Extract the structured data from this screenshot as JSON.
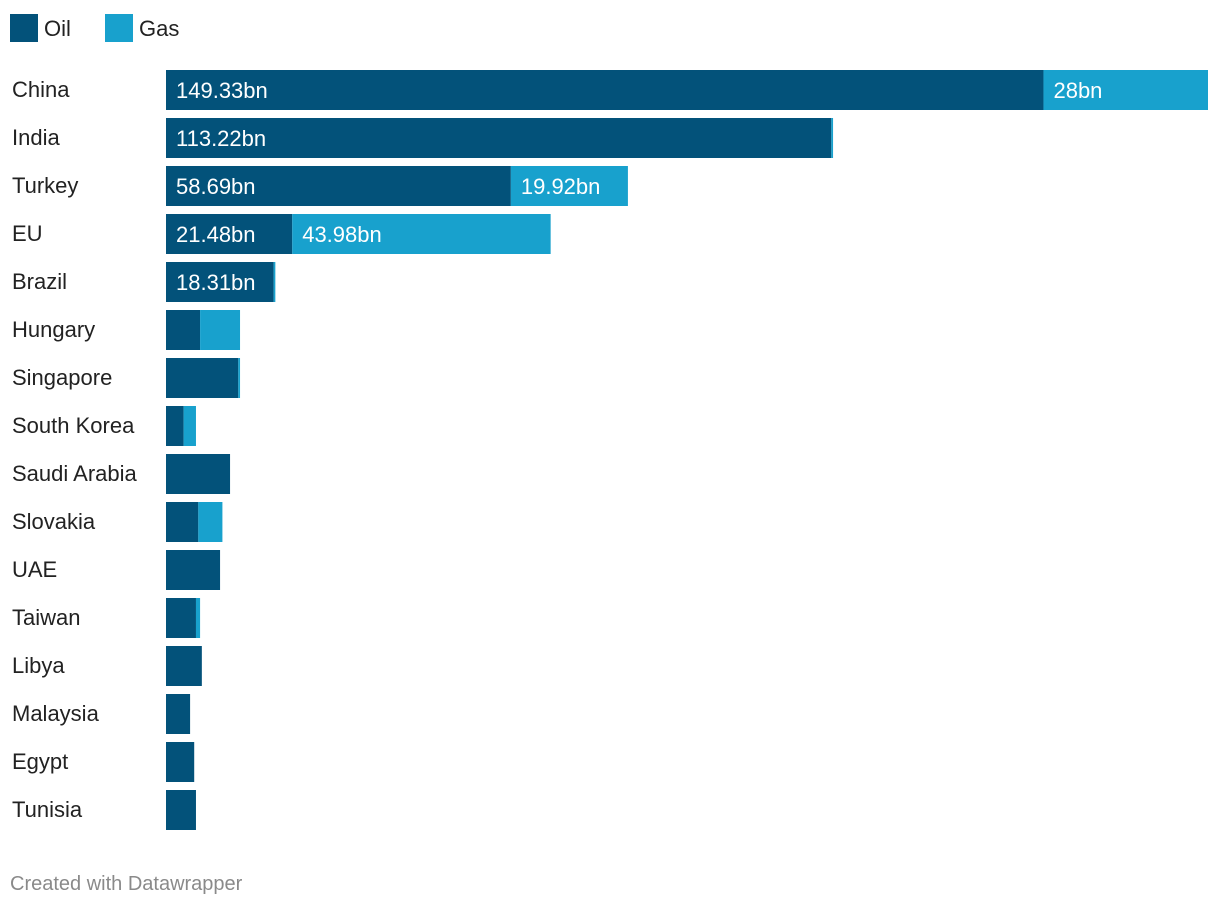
{
  "chart_data": {
    "type": "bar",
    "orientation": "horizontal",
    "stacked": true,
    "title": "",
    "xlabel": "",
    "ylabel": "",
    "grid": false,
    "legend_position": "top-left",
    "categories": [
      "China",
      "India",
      "Turkey",
      "EU",
      "Brazil",
      "Hungary",
      "Singapore",
      "South Korea",
      "Saudi Arabia",
      "Slovakia",
      "UAE",
      "Taiwan",
      "Libya",
      "Malaysia",
      "Egypt",
      "Tunisia"
    ],
    "series": [
      {
        "name": "Oil",
        "color": "#03527a",
        "values": [
          149.33,
          113.22,
          58.69,
          21.48,
          18.31,
          5.8,
          12.3,
          3.0,
          10.9,
          5.5,
          9.2,
          5.1,
          6.1,
          4.1,
          4.8,
          5.1
        ],
        "labels": [
          "149.33bn",
          "113.22bn",
          "58.69bn",
          "21.48bn",
          "18.31bn",
          "",
          "",
          "",
          "",
          "",
          "",
          "",
          "",
          "",
          "",
          ""
        ]
      },
      {
        "name": "Gas",
        "color": "#18a1cd",
        "values": [
          28,
          0.3,
          19.92,
          43.98,
          0.3,
          6.8,
          0.3,
          2.1,
          0,
          4.1,
          0,
          0.7,
          0,
          0,
          0,
          0
        ],
        "labels": [
          "28bn",
          "",
          "19.92bn",
          "43.98bn",
          "",
          "",
          "",
          "",
          "",
          "",
          "",
          "",
          "",
          "",
          "",
          ""
        ]
      }
    ],
    "xlim": [
      0,
      177.33
    ]
  },
  "footer": {
    "credit": "Created with Datawrapper"
  }
}
